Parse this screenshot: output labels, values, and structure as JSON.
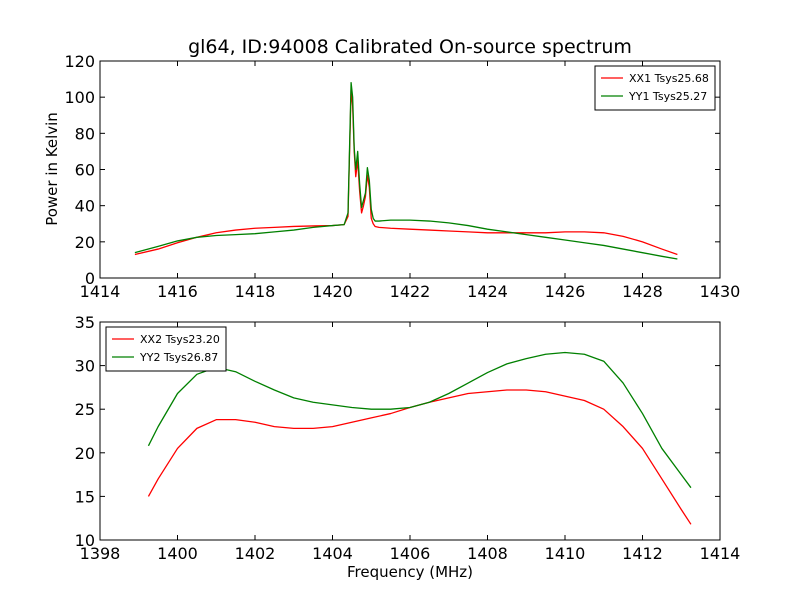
{
  "figure": {
    "title": "gl64, ID:94008 Calibrated On-source spectrum",
    "ylabel": "Power in Kelvin",
    "xlabel": "Frequency (MHz)"
  },
  "chart_data": [
    {
      "type": "line",
      "title": "gl64, ID:94008 Calibrated On-source spectrum",
      "xlabel": "",
      "ylabel": "Power in Kelvin",
      "xlim": [
        1414,
        1430
      ],
      "ylim": [
        0,
        120
      ],
      "xticks": [
        1414,
        1416,
        1418,
        1420,
        1422,
        1424,
        1426,
        1428,
        1430
      ],
      "yticks": [
        0,
        20,
        40,
        60,
        80,
        100,
        120
      ],
      "grid": false,
      "legend": "top-right",
      "series": [
        {
          "name": "XX1 Tsys25.68",
          "color": "#ff0000",
          "x": [
            1414.9,
            1415.5,
            1416.0,
            1416.5,
            1417.0,
            1417.5,
            1418.0,
            1418.5,
            1419.0,
            1419.5,
            1420.0,
            1420.3,
            1420.4,
            1420.48,
            1420.52,
            1420.56,
            1420.6,
            1420.65,
            1420.7,
            1420.75,
            1420.8,
            1420.85,
            1420.9,
            1420.95,
            1421.0,
            1421.05,
            1421.1,
            1421.2,
            1421.5,
            1422.0,
            1422.5,
            1423.0,
            1423.5,
            1424.0,
            1424.5,
            1425.0,
            1425.5,
            1426.0,
            1426.5,
            1427.0,
            1427.5,
            1428.0,
            1428.5,
            1428.9
          ],
          "y": [
            13,
            16,
            19.5,
            22.5,
            25,
            26.5,
            27.5,
            28,
            28.5,
            28.8,
            29,
            29.5,
            34,
            104,
            95,
            70,
            56,
            65,
            48,
            36,
            40,
            45,
            57,
            50,
            33,
            30,
            28.5,
            28,
            27.5,
            27,
            26.5,
            26,
            25.5,
            25,
            25,
            25,
            25,
            25.5,
            25.5,
            25,
            23,
            20,
            16,
            13
          ]
        },
        {
          "name": "YY1 Tsys25.27",
          "color": "#008000",
          "x": [
            1414.9,
            1415.5,
            1416.0,
            1416.5,
            1417.0,
            1417.5,
            1418.0,
            1418.5,
            1419.0,
            1419.5,
            1420.0,
            1420.3,
            1420.4,
            1420.48,
            1420.52,
            1420.56,
            1420.6,
            1420.65,
            1420.7,
            1420.75,
            1420.8,
            1420.85,
            1420.9,
            1420.95,
            1421.0,
            1421.05,
            1421.1,
            1421.2,
            1421.5,
            1422.0,
            1422.5,
            1423.0,
            1423.5,
            1424.0,
            1424.5,
            1425.0,
            1425.5,
            1426.0,
            1426.5,
            1427.0,
            1427.5,
            1428.0,
            1428.5,
            1428.9
          ],
          "y": [
            14,
            17.5,
            20.5,
            22.5,
            23.5,
            24,
            24.5,
            25.5,
            26.5,
            28,
            29,
            29.5,
            36,
            108,
            100,
            72,
            60,
            70,
            52,
            39,
            43,
            47,
            61,
            54,
            38,
            33,
            31.5,
            31.5,
            32,
            32,
            31.5,
            30.5,
            29,
            27,
            25.5,
            24,
            22.5,
            21,
            19.5,
            18,
            16,
            14,
            12,
            10.5
          ]
        }
      ]
    },
    {
      "type": "line",
      "title": "",
      "xlabel": "Frequency (MHz)",
      "ylabel": "",
      "xlim": [
        1398,
        1414
      ],
      "ylim": [
        10,
        35
      ],
      "xticks": [
        1398,
        1400,
        1402,
        1404,
        1406,
        1408,
        1410,
        1412,
        1414
      ],
      "yticks": [
        10,
        15,
        20,
        25,
        30,
        35
      ],
      "grid": false,
      "legend": "top-left",
      "series": [
        {
          "name": "XX2 Tsys23.20",
          "color": "#ff0000",
          "x": [
            1399.25,
            1399.5,
            1400.0,
            1400.5,
            1401.0,
            1401.5,
            1402.0,
            1402.5,
            1403.0,
            1403.5,
            1404.0,
            1404.5,
            1405.0,
            1405.5,
            1406.0,
            1406.5,
            1407.0,
            1407.5,
            1408.0,
            1408.5,
            1409.0,
            1409.5,
            1410.0,
            1410.5,
            1411.0,
            1411.5,
            1412.0,
            1412.5,
            1413.0,
            1413.25
          ],
          "y": [
            15,
            17,
            20.5,
            22.8,
            23.8,
            23.8,
            23.5,
            23,
            22.8,
            22.8,
            23,
            23.5,
            24,
            24.5,
            25.2,
            25.8,
            26.3,
            26.8,
            27,
            27.2,
            27.2,
            27,
            26.5,
            26,
            25,
            23,
            20.5,
            17,
            13.5,
            11.8
          ]
        },
        {
          "name": "YY2 Tsys26.87",
          "color": "#008000",
          "x": [
            1399.25,
            1399.5,
            1400.0,
            1400.5,
            1401.0,
            1401.5,
            1402.0,
            1402.5,
            1403.0,
            1403.5,
            1404.0,
            1404.5,
            1405.0,
            1405.5,
            1406.0,
            1406.5,
            1407.0,
            1407.5,
            1408.0,
            1408.5,
            1409.0,
            1409.5,
            1410.0,
            1410.5,
            1411.0,
            1411.5,
            1412.0,
            1412.5,
            1413.0,
            1413.25
          ],
          "y": [
            20.8,
            23,
            26.8,
            29,
            29.8,
            29.3,
            28.2,
            27.2,
            26.3,
            25.8,
            25.5,
            25.2,
            25,
            25,
            25.2,
            25.8,
            26.8,
            28,
            29.2,
            30.2,
            30.8,
            31.3,
            31.5,
            31.3,
            30.5,
            28,
            24.5,
            20.5,
            17.5,
            16
          ]
        }
      ]
    }
  ]
}
